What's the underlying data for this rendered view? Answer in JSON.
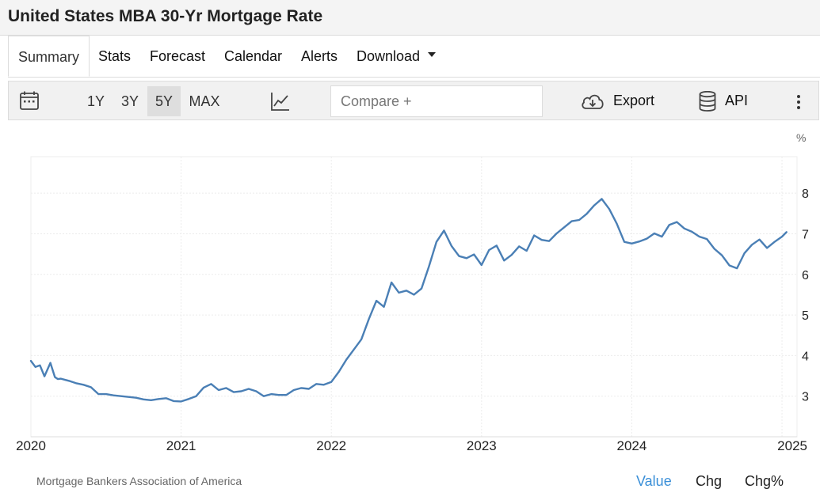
{
  "page": {
    "title": "United States MBA 30-Yr Mortgage Rate"
  },
  "tabs": [
    {
      "label": "Summary"
    },
    {
      "label": "Stats"
    },
    {
      "label": "Forecast"
    },
    {
      "label": "Calendar"
    },
    {
      "label": "Alerts"
    },
    {
      "label": "Download"
    }
  ],
  "toolbar": {
    "ranges": [
      "1Y",
      "3Y",
      "5Y",
      "MAX"
    ],
    "active_range": "5Y",
    "compare_placeholder": "Compare +",
    "export_label": "Export",
    "api_label": "API",
    "icons": [
      "calendar-icon",
      "line-chart-icon",
      "cloud-download-icon",
      "database-icon",
      "more-vertical-icon"
    ]
  },
  "footer": {
    "source": "Mortgage Bankers Association of America",
    "value_tabs": [
      "Value",
      "Chg",
      "Chg%"
    ],
    "active_value_tab": "Value"
  },
  "colors": {
    "line": "#4a7fb5",
    "active_tab": "#3a8fd8"
  },
  "chart_data": {
    "type": "line",
    "unit_label": "%",
    "ylim": [
      2.0,
      8.9
    ],
    "xlim": [
      2020.0,
      2025.1
    ],
    "y_ticks": [
      "8",
      "7",
      "6",
      "5",
      "4",
      "3"
    ],
    "x_ticks": [
      "2020",
      "2021",
      "2022",
      "2023",
      "2024",
      "2025"
    ],
    "grid": true,
    "series": [
      {
        "name": "",
        "x": [
          2020.0,
          2020.03,
          2020.06,
          2020.09,
          2020.13,
          2020.16,
          2020.18,
          2020.2,
          2020.23,
          2020.26,
          2020.3,
          2020.35,
          2020.4,
          2020.45,
          2020.5,
          2020.55,
          2020.6,
          2020.65,
          2020.7,
          2020.75,
          2020.8,
          2020.85,
          2020.9,
          2020.95,
          2021.0,
          2021.05,
          2021.1,
          2021.15,
          2021.2,
          2021.25,
          2021.3,
          2021.35,
          2021.4,
          2021.45,
          2021.5,
          2021.55,
          2021.6,
          2021.65,
          2021.7,
          2021.75,
          2021.8,
          2021.85,
          2021.9,
          2021.95,
          2022.0,
          2022.05,
          2022.1,
          2022.15,
          2022.2,
          2022.25,
          2022.3,
          2022.35,
          2022.4,
          2022.45,
          2022.5,
          2022.55,
          2022.6,
          2022.65,
          2022.7,
          2022.75,
          2022.8,
          2022.85,
          2022.9,
          2022.95,
          2023.0,
          2023.05,
          2023.1,
          2023.15,
          2023.2,
          2023.25,
          2023.3,
          2023.35,
          2023.4,
          2023.45,
          2023.5,
          2023.55,
          2023.6,
          2023.65,
          2023.7,
          2023.75,
          2023.8,
          2023.85,
          2023.9,
          2023.95,
          2024.0,
          2024.05,
          2024.1,
          2024.15,
          2024.2,
          2024.25,
          2024.3,
          2024.35,
          2024.4,
          2024.45,
          2024.5,
          2024.55,
          2024.6,
          2024.65,
          2024.7,
          2024.75,
          2024.8,
          2024.85,
          2024.9,
          2024.95,
          2025.0,
          2025.03
        ],
        "y": [
          3.87,
          3.72,
          3.76,
          3.49,
          3.82,
          3.47,
          3.42,
          3.43,
          3.4,
          3.37,
          3.32,
          3.28,
          3.22,
          3.05,
          3.05,
          3.02,
          3.0,
          2.98,
          2.96,
          2.92,
          2.9,
          2.93,
          2.95,
          2.88,
          2.87,
          2.93,
          3.0,
          3.21,
          3.3,
          3.15,
          3.2,
          3.1,
          3.12,
          3.18,
          3.12,
          3.0,
          3.05,
          3.03,
          3.03,
          3.15,
          3.2,
          3.18,
          3.3,
          3.28,
          3.35,
          3.6,
          3.9,
          4.15,
          4.4,
          4.9,
          5.35,
          5.2,
          5.8,
          5.55,
          5.6,
          5.5,
          5.65,
          6.2,
          6.8,
          7.08,
          6.7,
          6.45,
          6.4,
          6.49,
          6.23,
          6.6,
          6.71,
          6.34,
          6.48,
          6.69,
          6.58,
          6.96,
          6.85,
          6.82,
          7.01,
          7.16,
          7.31,
          7.34,
          7.49,
          7.7,
          7.86,
          7.61,
          7.25,
          6.8,
          6.76,
          6.81,
          6.88,
          7.01,
          6.93,
          7.22,
          7.29,
          7.13,
          7.05,
          6.93,
          6.87,
          6.63,
          6.47,
          6.22,
          6.15,
          6.52,
          6.73,
          6.86,
          6.65,
          6.8,
          6.93,
          7.04
        ]
      }
    ]
  }
}
